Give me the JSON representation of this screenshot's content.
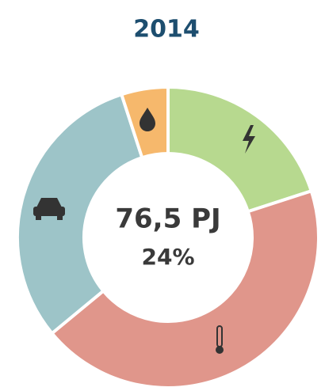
{
  "chart_data": {
    "type": "pie",
    "title": "2014",
    "center_text": [
      "76,5 PJ",
      "24%"
    ],
    "values": [
      20,
      44,
      31,
      5
    ],
    "colors": [
      "#b7d98f",
      "#e0968b",
      "#9dc4c8",
      "#f6b86c"
    ]
  }
}
